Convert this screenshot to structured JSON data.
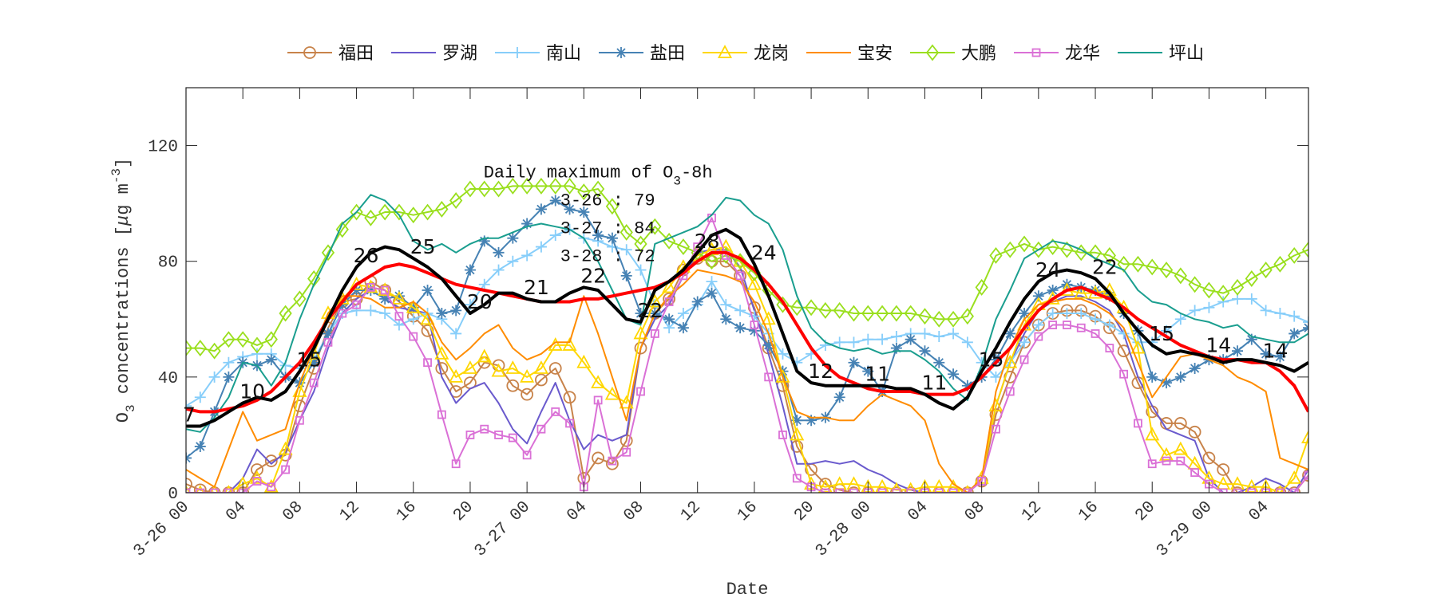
{
  "chart_data": {
    "type": "line",
    "title": "",
    "xlabel": "Date",
    "ylabel": "O3 concentrations [μg m-3]",
    "ylabel_parts": {
      "main": "O",
      "sub": "3",
      "rest": " concentrations [",
      "mu": "μ",
      "unit": "g m",
      "sup": "-3",
      "close": "]"
    },
    "xlim": [
      0,
      79
    ],
    "ylim": [
      0,
      140
    ],
    "x_unit": "hour from 3-26 00",
    "xticks": [
      0,
      4,
      8,
      12,
      16,
      20,
      24,
      28,
      32,
      36,
      40,
      44,
      48,
      52,
      56,
      60,
      64,
      68,
      72,
      76
    ],
    "xtick_labels": [
      "3-26 00",
      "04",
      "08",
      "12",
      "16",
      "20",
      "3-27 00",
      "04",
      "08",
      "12",
      "16",
      "20",
      "3-28 00",
      "04",
      "08",
      "12",
      "16",
      "20",
      "3-29 00",
      "04"
    ],
    "yticks": [
      0,
      40,
      80,
      120
    ],
    "ytick_labels": [
      "0",
      "40",
      "80",
      "120"
    ],
    "grid": false,
    "legend_placement": "top-outside",
    "annotation": {
      "title": "Daily maximum of O",
      "title_sub": "3",
      "title_rest": "-8h",
      "lines": [
        "3-26 : 79",
        "3-27 : 84",
        "3-28 : 72"
      ]
    },
    "series": [
      {
        "name": "福田",
        "color": "#c8834a",
        "marker": "circle",
        "values": [
          3,
          1,
          0,
          0,
          0,
          8,
          11,
          13,
          30,
          43,
          57,
          66,
          67,
          73,
          70,
          66,
          61,
          56,
          43,
          35,
          38,
          45,
          44,
          37,
          34,
          39,
          43,
          33,
          5,
          12,
          10,
          18,
          50,
          62,
          67,
          77,
          81,
          80,
          80,
          75,
          64,
          50,
          37,
          16,
          8,
          3,
          1,
          0,
          0,
          0,
          0,
          0,
          0,
          0,
          0,
          0,
          4,
          27,
          40,
          52,
          58,
          62,
          63,
          63,
          61,
          57,
          49,
          38,
          28,
          24,
          24,
          21,
          12,
          8,
          0,
          0,
          0,
          0,
          0,
          6
        ]
      },
      {
        "name": "罗湖",
        "color": "#6a5acd",
        "marker": "none",
        "values": [
          0,
          0,
          0,
          0,
          5,
          15,
          10,
          14,
          25,
          35,
          50,
          62,
          67,
          70,
          67,
          64,
          63,
          62,
          40,
          31,
          36,
          38,
          31,
          22,
          17,
          28,
          38,
          25,
          15,
          20,
          18,
          20,
          50,
          60,
          65,
          75,
          83,
          84,
          84,
          78,
          63,
          48,
          30,
          10,
          10,
          11,
          10,
          11,
          8,
          6,
          3,
          1,
          0,
          0,
          0,
          0,
          5,
          30,
          45,
          55,
          63,
          66,
          68,
          68,
          66,
          63,
          55,
          40,
          30,
          22,
          20,
          18,
          5,
          0,
          0,
          2,
          5,
          3,
          0,
          8
        ]
      },
      {
        "name": "南山",
        "color": "#87cefa",
        "marker": "plus",
        "values": [
          30,
          33,
          40,
          45,
          47,
          48,
          48,
          44,
          43,
          46,
          55,
          62,
          63,
          63,
          62,
          58,
          60,
          62,
          60,
          55,
          65,
          72,
          77,
          80,
          82,
          85,
          89,
          91,
          88,
          87,
          85,
          84,
          77,
          65,
          57,
          62,
          65,
          73,
          65,
          63,
          61,
          55,
          48,
          45,
          48,
          51,
          52,
          52,
          53,
          53,
          54,
          55,
          55,
          54,
          55,
          52,
          45,
          40,
          45,
          52,
          58,
          62,
          62,
          62,
          60,
          58,
          55,
          52,
          52,
          56,
          60,
          63,
          64,
          66,
          67,
          67,
          63,
          62,
          61,
          59
        ]
      },
      {
        "name": "盐田",
        "color": "#4682b4",
        "marker": "asterisk",
        "values": [
          12,
          16,
          28,
          40,
          45,
          44,
          46,
          40,
          38,
          45,
          55,
          65,
          70,
          70,
          67,
          68,
          64,
          70,
          62,
          63,
          77,
          87,
          83,
          88,
          93,
          98,
          101,
          98,
          97,
          89,
          88,
          75,
          62,
          62,
          60,
          57,
          66,
          69,
          60,
          57,
          56,
          51,
          42,
          25,
          25,
          26,
          33,
          45,
          42,
          35,
          50,
          53,
          49,
          45,
          41,
          37,
          40,
          46,
          55,
          62,
          68,
          70,
          72,
          71,
          70,
          68,
          62,
          56,
          40,
          38,
          40,
          43,
          46,
          46,
          49,
          53,
          48,
          47,
          55,
          57
        ]
      },
      {
        "name": "龙岗",
        "color": "#ffd700",
        "marker": "triangle",
        "values": [
          0,
          0,
          0,
          0,
          3,
          5,
          2,
          15,
          35,
          48,
          62,
          67,
          72,
          71,
          70,
          67,
          64,
          60,
          48,
          40,
          43,
          47,
          42,
          43,
          40,
          43,
          51,
          51,
          45,
          38,
          34,
          31,
          55,
          66,
          71,
          78,
          82,
          84,
          85,
          80,
          72,
          60,
          40,
          20,
          3,
          2,
          3,
          3,
          2,
          2,
          1,
          1,
          2,
          2,
          2,
          0,
          5,
          30,
          45,
          58,
          65,
          67,
          70,
          69,
          69,
          70,
          64,
          50,
          20,
          13,
          15,
          10,
          5,
          3,
          3,
          2,
          2,
          0,
          5,
          19
        ]
      },
      {
        "name": "宝安",
        "color": "#ff8c00",
        "marker": "none",
        "values": [
          8,
          5,
          2,
          15,
          28,
          18,
          20,
          22,
          38,
          50,
          62,
          68,
          68,
          67,
          64,
          64,
          66,
          62,
          52,
          46,
          50,
          55,
          58,
          50,
          46,
          48,
          52,
          52,
          68,
          55,
          40,
          25,
          50,
          62,
          68,
          72,
          77,
          76,
          75,
          73,
          66,
          55,
          40,
          28,
          26,
          26,
          25,
          25,
          30,
          34,
          32,
          30,
          25,
          10,
          3,
          0,
          5,
          35,
          50,
          60,
          65,
          66,
          67,
          67,
          65,
          62,
          57,
          45,
          33,
          40,
          47,
          48,
          46,
          44,
          40,
          38,
          35,
          12,
          10,
          8
        ]
      },
      {
        "name": "大鹏",
        "color": "#9adf1e",
        "marker": "diamond",
        "values": [
          50,
          50,
          49,
          53,
          53,
          51,
          53,
          62,
          67,
          74,
          83,
          91,
          97,
          95,
          97,
          97,
          96,
          97,
          98,
          101,
          105,
          105,
          105,
          106,
          106,
          106,
          106,
          106,
          104,
          105,
          99,
          90,
          86,
          92,
          87,
          85,
          83,
          80,
          82,
          80,
          76,
          70,
          65,
          64,
          64,
          63,
          63,
          62,
          62,
          62,
          62,
          62,
          61,
          60,
          60,
          61,
          71,
          82,
          84,
          86,
          84,
          85,
          84,
          83,
          83,
          82,
          79,
          79,
          78,
          77,
          75,
          72,
          70,
          69,
          71,
          74,
          77,
          79,
          82,
          84
        ]
      },
      {
        "name": "龙华",
        "color": "#da70d6",
        "marker": "square",
        "values": [
          0,
          0,
          0,
          0,
          0,
          4,
          2,
          8,
          25,
          38,
          52,
          62,
          65,
          71,
          70,
          61,
          54,
          45,
          27,
          10,
          20,
          22,
          20,
          19,
          13,
          22,
          28,
          24,
          2,
          32,
          11,
          14,
          35,
          55,
          66,
          75,
          85,
          95,
          82,
          75,
          58,
          40,
          20,
          5,
          2,
          0,
          0,
          0,
          0,
          0,
          0,
          0,
          0,
          0,
          0,
          0,
          4,
          22,
          35,
          46,
          54,
          58,
          58,
          57,
          55,
          50,
          41,
          24,
          10,
          11,
          11,
          7,
          3,
          0,
          0,
          0,
          0,
          0,
          0,
          6
        ]
      },
      {
        "name": "坪山",
        "color": "#1a9e8f",
        "marker": "none",
        "values": [
          22,
          21,
          26,
          33,
          45,
          44,
          37,
          45,
          60,
          72,
          82,
          93,
          97,
          103,
          101,
          96,
          87,
          84,
          86,
          83,
          86,
          88,
          88,
          90,
          92,
          93,
          92,
          91,
          88,
          80,
          70,
          60,
          58,
          86,
          88,
          90,
          92,
          96,
          102,
          101,
          96,
          93,
          84,
          68,
          57,
          52,
          50,
          49,
          50,
          48,
          49,
          49,
          46,
          42,
          36,
          32,
          44,
          60,
          70,
          81,
          84,
          87,
          86,
          84,
          81,
          79,
          77,
          70,
          66,
          65,
          62,
          60,
          59,
          57,
          58,
          54,
          53,
          52,
          52,
          55
        ]
      }
    ],
    "mean_line": {
      "color": "#000000",
      "values": [
        23,
        23,
        25,
        28,
        31,
        33,
        32,
        35,
        42,
        50,
        60,
        70,
        78,
        83,
        85,
        84,
        81,
        78,
        74,
        68,
        62,
        65,
        69,
        69,
        67,
        66,
        66,
        69,
        71,
        70,
        65,
        60,
        59,
        70,
        73,
        77,
        83,
        89,
        91,
        88,
        79,
        68,
        55,
        42,
        38,
        37,
        37,
        37,
        37,
        37,
        36,
        36,
        34,
        31,
        29,
        33,
        42,
        50,
        59,
        67,
        73,
        76,
        77,
        76,
        74,
        69,
        62,
        56,
        51,
        48,
        49,
        48,
        47,
        45,
        46,
        46,
        45,
        44,
        42,
        45
      ]
    },
    "smooth_line": {
      "color": "#ff0000",
      "values": [
        29,
        28,
        28,
        29,
        30,
        32,
        35,
        40,
        45,
        52,
        60,
        66,
        72,
        75,
        78,
        79,
        78,
        76,
        74,
        72,
        71,
        70,
        69,
        68,
        67,
        66,
        66,
        66,
        67,
        67,
        68,
        69,
        70,
        71,
        73,
        76,
        80,
        83,
        83,
        81,
        77,
        72,
        66,
        58,
        50,
        44,
        40,
        38,
        36,
        35,
        35,
        35,
        34,
        34,
        34,
        36,
        40,
        45,
        50,
        57,
        63,
        67,
        70,
        71,
        69,
        67,
        64,
        60,
        57,
        54,
        51,
        49,
        47,
        46,
        46,
        45,
        45,
        42,
        37,
        28
      ]
    },
    "mean_line_labels": {
      "hours": [
        0,
        4,
        8,
        12,
        16,
        20,
        24,
        28,
        32,
        36,
        40,
        44,
        48,
        52,
        56,
        60,
        64,
        68,
        72,
        76
      ],
      "labels": [
        "7",
        "10",
        "15",
        "26",
        "25",
        "20",
        "21",
        "22",
        "22",
        "28",
        "24",
        "12",
        "11",
        "11",
        "15",
        "24",
        "22",
        "15",
        "14",
        "14"
      ]
    }
  }
}
